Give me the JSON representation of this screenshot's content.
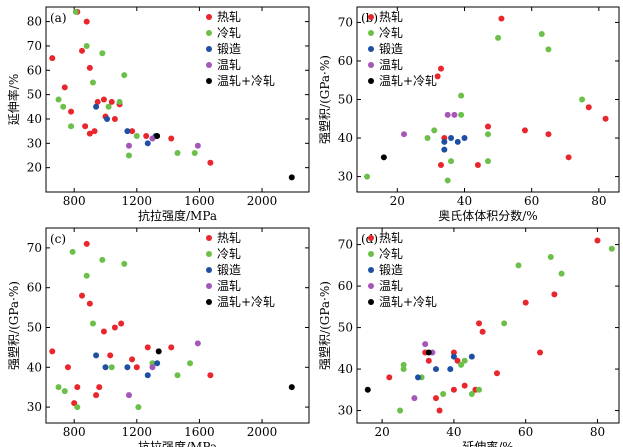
{
  "colors": {
    "hot_rolled": "#e8262b",
    "cold_rolled": "#6cc04a",
    "forged": "#1f4fa3",
    "warm_rolled": "#a457b7",
    "warm_cold_rolled": "#000000"
  },
  "legend": {
    "hot_rolled": "热轧",
    "cold_rolled": "冷轧",
    "forged": "锻造",
    "warm_rolled": "温轧",
    "warm_cold_rolled": "温轧+冷轧"
  },
  "chart_data": [
    {
      "panel": "(a)",
      "type": "scatter",
      "xlabel": "抗拉强度/MPa",
      "ylabel": "延伸率/%",
      "xlim": [
        620,
        2300
      ],
      "ylim": [
        10,
        86
      ],
      "xticks": [
        800,
        1200,
        1600,
        2000
      ],
      "yticks": [
        20,
        30,
        40,
        50,
        60,
        70,
        80
      ],
      "series": [
        {
          "name": "热轧",
          "color_key": "hot_rolled",
          "points": [
            [
              660,
              65
            ],
            [
              740,
              53
            ],
            [
              780,
              43
            ],
            [
              820,
              84
            ],
            [
              850,
              68
            ],
            [
              880,
              80
            ],
            [
              900,
              61
            ],
            [
              870,
              37
            ],
            [
              900,
              34
            ],
            [
              930,
              35
            ],
            [
              950,
              47
            ],
            [
              990,
              48
            ],
            [
              1000,
              41
            ],
            [
              1040,
              47
            ],
            [
              1060,
              40
            ],
            [
              1090,
              46
            ],
            [
              1170,
              35
            ],
            [
              1260,
              33
            ],
            [
              1420,
              32
            ],
            [
              1670,
              22
            ]
          ]
        },
        {
          "name": "冷轧",
          "color_key": "cold_rolled",
          "points": [
            [
              700,
              48
            ],
            [
              730,
              45
            ],
            [
              780,
              37
            ],
            [
              810,
              84
            ],
            [
              880,
              70
            ],
            [
              920,
              55
            ],
            [
              980,
              67
            ],
            [
              1020,
              45
            ],
            [
              1090,
              47
            ],
            [
              1120,
              58
            ],
            [
              1200,
              33
            ],
            [
              1460,
              26
            ],
            [
              1570,
              26
            ],
            [
              1150,
              25
            ]
          ]
        },
        {
          "name": "锻造",
          "color_key": "forged",
          "points": [
            [
              940,
              45
            ],
            [
              1010,
              40
            ],
            [
              1140,
              35
            ],
            [
              1270,
              30
            ],
            [
              1320,
              33
            ]
          ]
        },
        {
          "name": "温轧",
          "color_key": "warm_rolled",
          "points": [
            [
              1150,
              29
            ],
            [
              1300,
              32
            ],
            [
              1590,
              29
            ]
          ]
        },
        {
          "name": "温轧+冷轧",
          "color_key": "warm_cold_rolled",
          "points": [
            [
              1330,
              33
            ],
            [
              2190,
              16
            ]
          ]
        }
      ]
    },
    {
      "panel": "(b)",
      "type": "scatter",
      "xlabel": "奥氏体体积分数/%",
      "ylabel": "强塑积/(GPa·%)",
      "xlim": [
        8,
        86
      ],
      "ylim": [
        26,
        74
      ],
      "xticks": [
        20,
        40,
        60,
        80
      ],
      "yticks": [
        30,
        40,
        50,
        60,
        70
      ],
      "series": [
        {
          "name": "热轧",
          "color_key": "hot_rolled",
          "points": [
            [
              32,
              56
            ],
            [
              33,
              58
            ],
            [
              34,
              40
            ],
            [
              33,
              33
            ],
            [
              44,
              33
            ],
            [
              47,
              43
            ],
            [
              51,
              71
            ],
            [
              58,
              42
            ],
            [
              65,
              41
            ],
            [
              71,
              35
            ],
            [
              77,
              48
            ],
            [
              82,
              45
            ]
          ]
        },
        {
          "name": "冷轧",
          "color_key": "cold_rolled",
          "points": [
            [
              11,
              30
            ],
            [
              29,
              40
            ],
            [
              31,
              42
            ],
            [
              35,
              29
            ],
            [
              36,
              34
            ],
            [
              39,
              46
            ],
            [
              39,
              51
            ],
            [
              47,
              41
            ],
            [
              47,
              34
            ],
            [
              50,
              66
            ],
            [
              63,
              67
            ],
            [
              65,
              63
            ],
            [
              75,
              50
            ]
          ]
        },
        {
          "name": "锻造",
          "color_key": "forged",
          "points": [
            [
              34,
              37
            ],
            [
              34,
              39
            ],
            [
              36,
              40
            ],
            [
              38,
              39
            ],
            [
              40,
              40
            ]
          ]
        },
        {
          "name": "温轧",
          "color_key": "warm_rolled",
          "points": [
            [
              22,
              41
            ],
            [
              35,
              46
            ],
            [
              37,
              46
            ]
          ]
        },
        {
          "name": "温轧+冷轧",
          "color_key": "warm_cold_rolled",
          "points": [
            [
              16,
              35
            ]
          ]
        }
      ]
    },
    {
      "panel": "(c)",
      "type": "scatter",
      "xlabel": "抗拉强度/MPa",
      "ylabel": "强塑积/(GPa·%)",
      "xlim": [
        620,
        2300
      ],
      "ylim": [
        26,
        75
      ],
      "xticks": [
        800,
        1200,
        1600,
        2000
      ],
      "yticks": [
        30,
        40,
        50,
        60,
        70
      ],
      "series": [
        {
          "name": "热轧",
          "color_key": "hot_rolled",
          "points": [
            [
              660,
              44
            ],
            [
              760,
              40
            ],
            [
              800,
              31
            ],
            [
              820,
              35
            ],
            [
              850,
              58
            ],
            [
              880,
              71
            ],
            [
              900,
              56
            ],
            [
              940,
              33
            ],
            [
              960,
              35
            ],
            [
              990,
              49
            ],
            [
              1030,
              43
            ],
            [
              1060,
              50
            ],
            [
              1100,
              51
            ],
            [
              1170,
              42
            ],
            [
              1200,
              40
            ],
            [
              1270,
              45
            ],
            [
              1420,
              45
            ],
            [
              1670,
              38
            ]
          ]
        },
        {
          "name": "冷轧",
          "color_key": "cold_rolled",
          "points": [
            [
              700,
              35
            ],
            [
              740,
              34
            ],
            [
              790,
              69
            ],
            [
              820,
              30
            ],
            [
              880,
              63
            ],
            [
              920,
              51
            ],
            [
              980,
              67
            ],
            [
              1040,
              40
            ],
            [
              1120,
              66
            ],
            [
              1210,
              30
            ],
            [
              1300,
              41
            ],
            [
              1460,
              38
            ],
            [
              1540,
              41
            ]
          ]
        },
        {
          "name": "锻造",
          "color_key": "forged",
          "points": [
            [
              940,
              43
            ],
            [
              1000,
              40
            ],
            [
              1140,
              40
            ],
            [
              1270,
              38
            ],
            [
              1330,
              41
            ]
          ]
        },
        {
          "name": "温轧",
          "color_key": "warm_rolled",
          "points": [
            [
              1150,
              33
            ],
            [
              1300,
              40
            ],
            [
              1590,
              46
            ]
          ]
        },
        {
          "name": "温轧+冷轧",
          "color_key": "warm_cold_rolled",
          "points": [
            [
              1340,
              44
            ],
            [
              2190,
              35
            ]
          ]
        }
      ]
    },
    {
      "panel": "(d)",
      "type": "scatter",
      "xlabel": "延伸率/%",
      "ylabel": "强塑积/(GPa·%)",
      "xlim": [
        13,
        86
      ],
      "ylim": [
        27,
        74
      ],
      "xticks": [
        20,
        40,
        60,
        80
      ],
      "yticks": [
        30,
        40,
        50,
        60,
        70
      ],
      "series": [
        {
          "name": "热轧",
          "color_key": "hot_rolled",
          "points": [
            [
              22,
              38
            ],
            [
              32,
              44
            ],
            [
              33,
              42
            ],
            [
              35,
              33
            ],
            [
              36,
              30
            ],
            [
              40,
              35
            ],
            [
              40,
              44
            ],
            [
              41,
              42
            ],
            [
              43,
              36
            ],
            [
              46,
              35
            ],
            [
              47,
              51
            ],
            [
              48,
              49
            ],
            [
              52,
              39
            ],
            [
              60,
              56
            ],
            [
              64,
              44
            ],
            [
              68,
              58
            ],
            [
              80,
              71
            ]
          ]
        },
        {
          "name": "冷轧",
          "color_key": "cold_rolled",
          "points": [
            [
              25,
              30
            ],
            [
              26,
              41
            ],
            [
              26,
              40
            ],
            [
              31,
              38
            ],
            [
              37,
              34
            ],
            [
              42,
              41
            ],
            [
              43,
              42
            ],
            [
              45,
              34
            ],
            [
              47,
              35
            ],
            [
              54,
              51
            ],
            [
              58,
              65
            ],
            [
              67,
              67
            ],
            [
              70,
              63
            ],
            [
              84,
              69
            ]
          ]
        },
        {
          "name": "锻造",
          "color_key": "forged",
          "points": [
            [
              30,
              38
            ],
            [
              35,
              40
            ],
            [
              39,
              40
            ],
            [
              40,
              43
            ],
            [
              45,
              43
            ]
          ]
        },
        {
          "name": "温轧",
          "color_key": "warm_rolled",
          "points": [
            [
              29,
              33
            ],
            [
              32,
              46
            ],
            [
              34,
              44
            ]
          ]
        },
        {
          "name": "温轧+冷轧",
          "color_key": "warm_cold_rolled",
          "points": [
            [
              16,
              35
            ],
            [
              33,
              44
            ]
          ]
        }
      ]
    }
  ]
}
